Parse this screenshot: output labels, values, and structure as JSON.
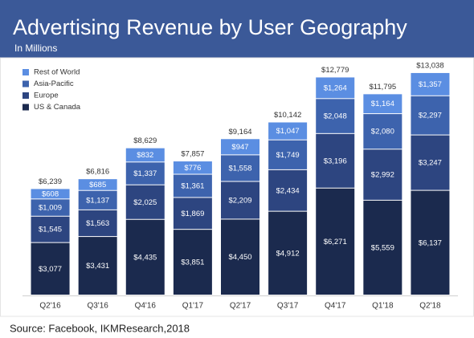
{
  "chart_data": {
    "type": "stacked_bar",
    "title": "Advertising Revenue by User Geography",
    "subtitle": "In Millions",
    "source": "Source: Facebook, IKMResearch,2018",
    "categories": [
      "Q2'16",
      "Q3'16",
      "Q4'16",
      "Q1'17",
      "Q2'17",
      "Q3'17",
      "Q4'17",
      "Q1'18",
      "Q2'18"
    ],
    "series": [
      {
        "name": "US & Canada",
        "color": "#1b2a4e",
        "values": [
          3077,
          3431,
          4435,
          3851,
          4450,
          4912,
          6271,
          5559,
          6137
        ],
        "value_labels": [
          "$3,077",
          "$3,431",
          "$4,435",
          "$3,851",
          "$4,450",
          "$4,912",
          "$6,271",
          "$5,559",
          "$6,137"
        ]
      },
      {
        "name": "Europe",
        "color": "#2d4580",
        "values": [
          1545,
          1563,
          2025,
          1869,
          2209,
          2434,
          3196,
          2992,
          3247
        ],
        "value_labels": [
          "$1,545",
          "$1,563",
          "$2,025",
          "$1,869",
          "$2,209",
          "$2,434",
          "$3,196",
          "$2,992",
          "$3,247"
        ]
      },
      {
        "name": "Asia-Pacific",
        "color": "#3d63ad",
        "values": [
          1009,
          1137,
          1337,
          1361,
          1558,
          1749,
          2048,
          2080,
          2297
        ],
        "value_labels": [
          "$1,009",
          "$1,137",
          "$1,337",
          "$1,361",
          "$1,558",
          "$1,749",
          "$2,048",
          "$2,080",
          "$2,297"
        ]
      },
      {
        "name": "Rest of World",
        "color": "#5b8ee2",
        "values": [
          608,
          685,
          832,
          776,
          947,
          1047,
          1264,
          1164,
          1357
        ],
        "value_labels": [
          "$608",
          "$685",
          "$832",
          "$776",
          "$947",
          "$1,047",
          "$1,264",
          "$1,164",
          "$1,357"
        ]
      }
    ],
    "totals": [
      6239,
      6816,
      8629,
      7857,
      9164,
      10142,
      12779,
      11795,
      13038
    ],
    "total_labels": [
      "$6,239",
      "$6,816",
      "$8,629",
      "$7,857",
      "$9,164",
      "$10,142",
      "$12,779",
      "$11,795",
      "$13,038"
    ],
    "ylim": [
      0,
      14000
    ],
    "legend": "upper left"
  }
}
